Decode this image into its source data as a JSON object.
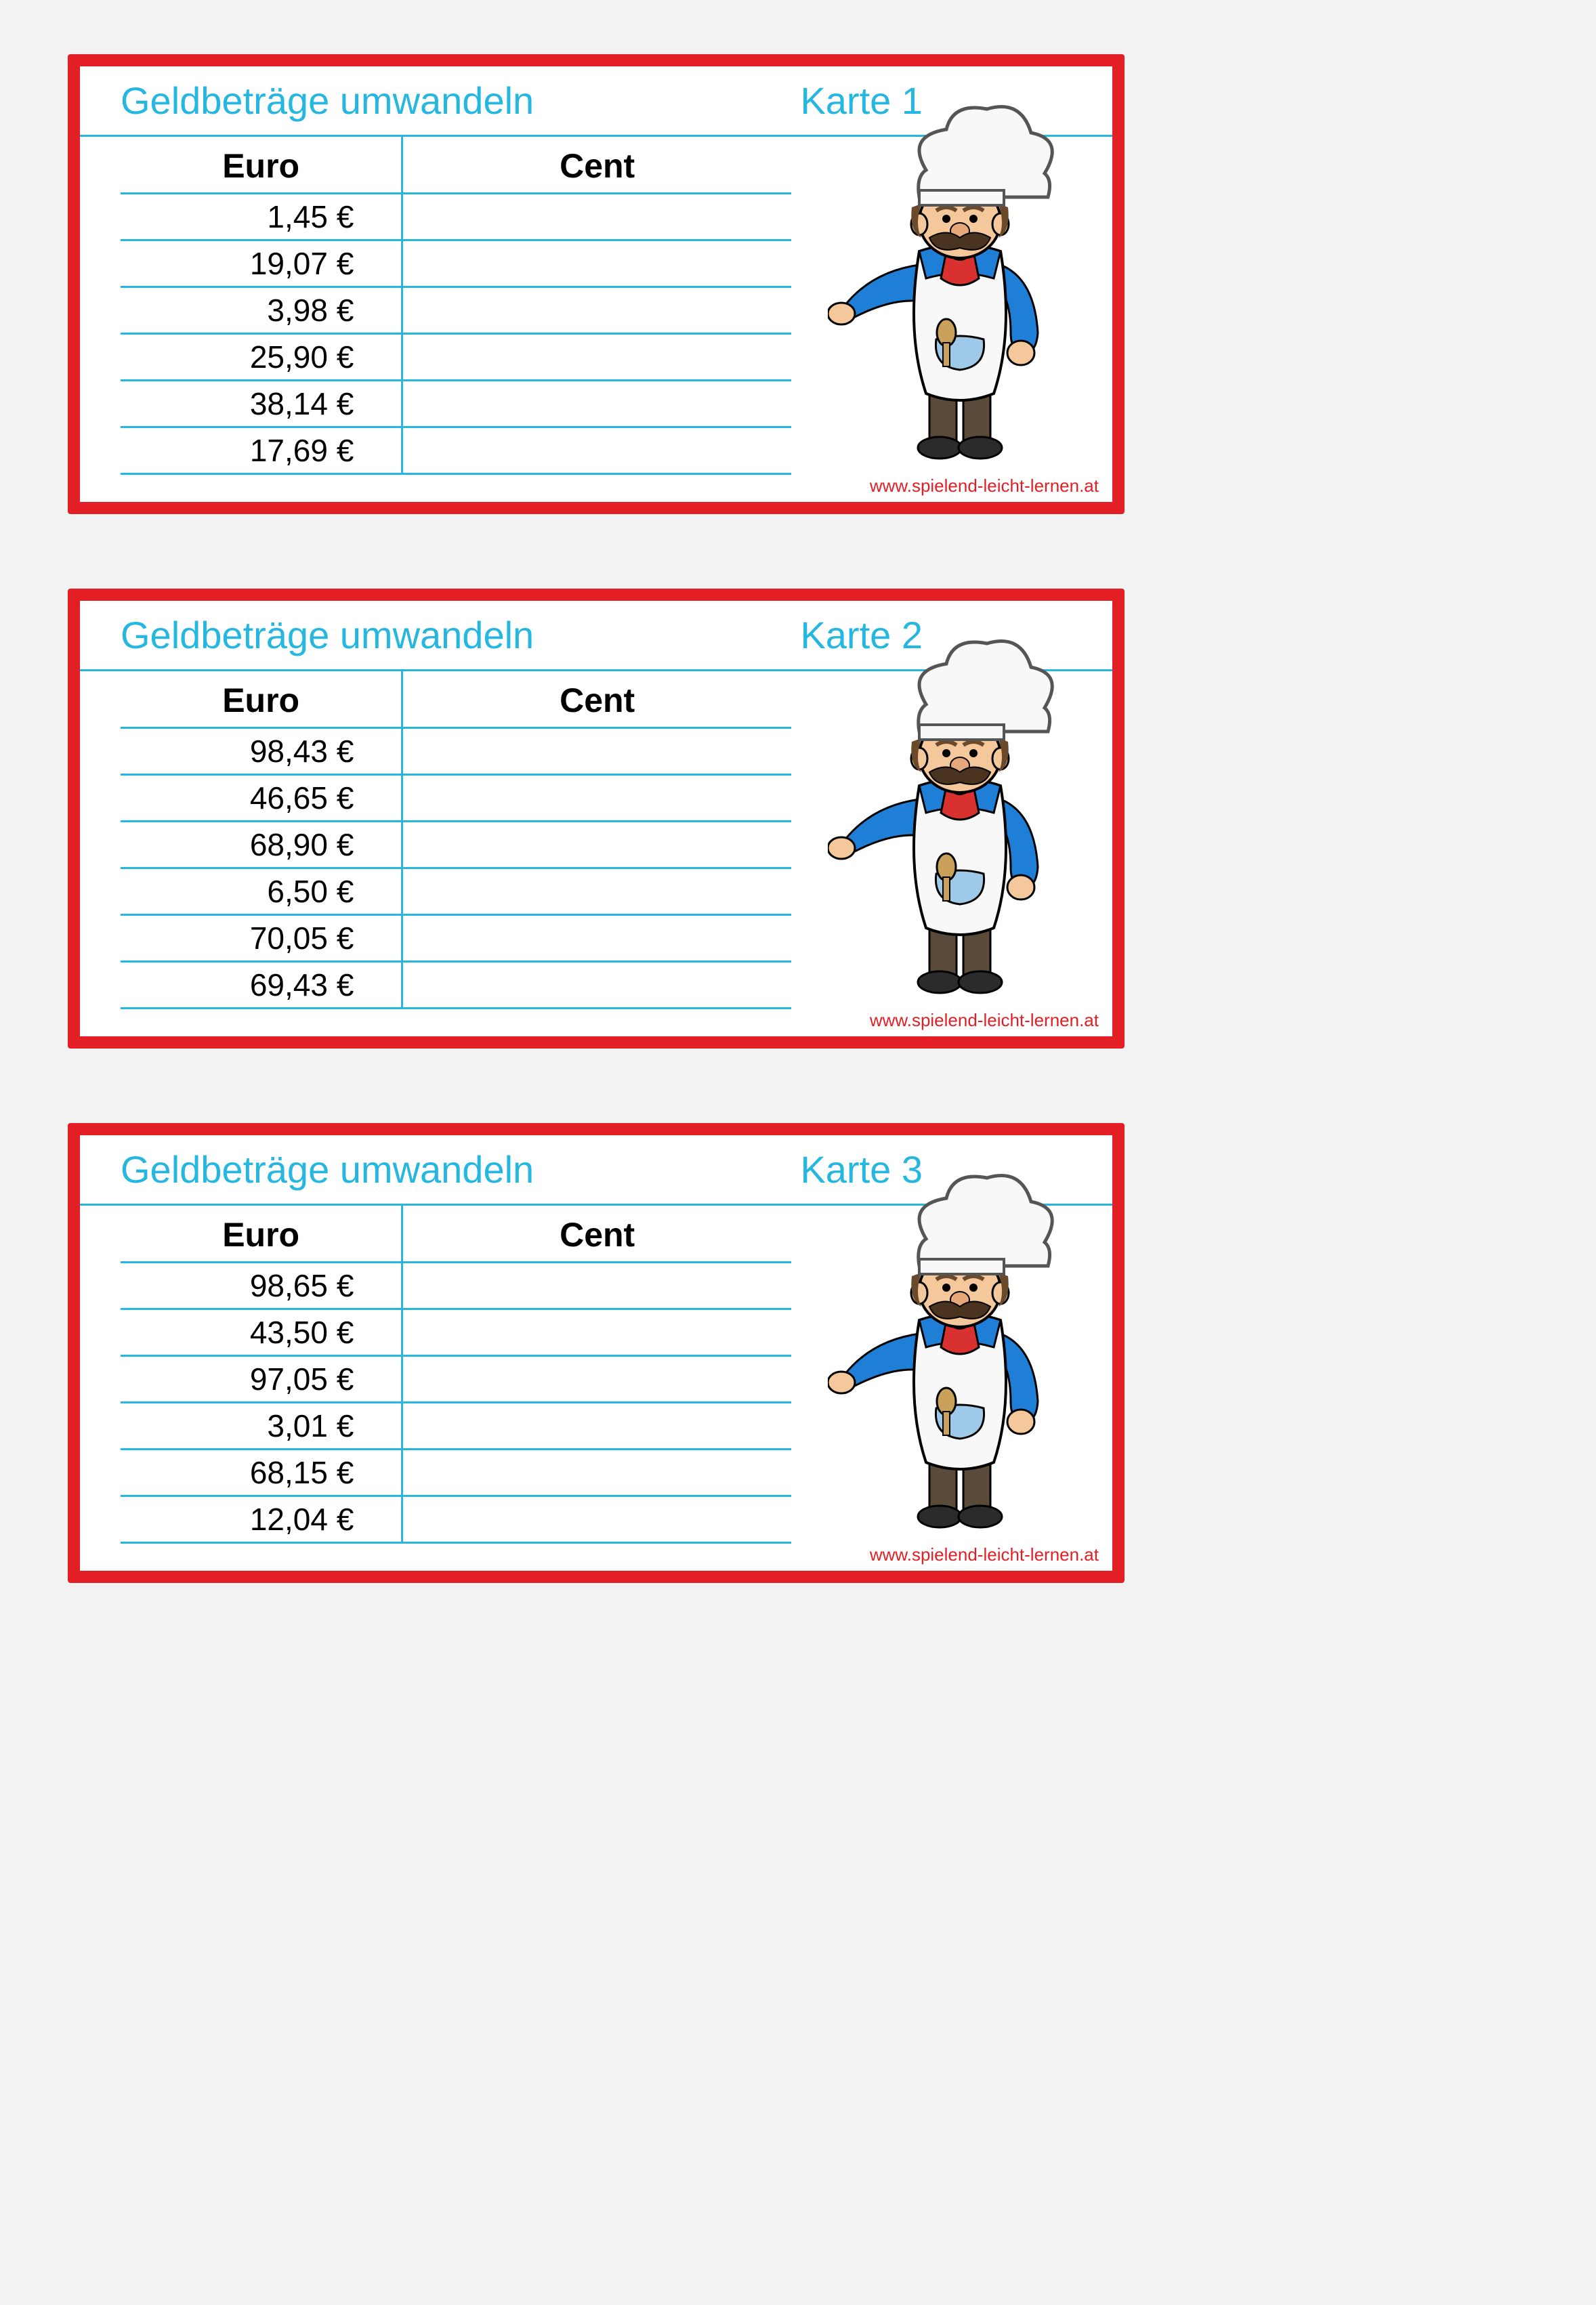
{
  "colors": {
    "page_bg": "#f2f2f2",
    "card_bg": "#ffffff",
    "border": "#e31e24",
    "accent": "#25b7e0",
    "text": "#000000",
    "url": "#e31e24"
  },
  "typography": {
    "header_fontsize": 56,
    "th_fontsize": 50,
    "td_fontsize": 46,
    "url_fontsize": 26
  },
  "common": {
    "title": "Geldbeträge umwandeln",
    "col_euro": "Euro",
    "col_cent": "Cent",
    "url": "www.spielend-leicht-lernen.at"
  },
  "cards": [
    {
      "karte": "Karte 1",
      "rows": [
        {
          "euro": "  1,45 €",
          "cent": ""
        },
        {
          "euro": "19,07 €",
          "cent": ""
        },
        {
          "euro": "  3,98 €",
          "cent": ""
        },
        {
          "euro": "25,90 €",
          "cent": ""
        },
        {
          "euro": "38,14 €",
          "cent": ""
        },
        {
          "euro": "17,69 €",
          "cent": ""
        }
      ]
    },
    {
      "karte": "Karte 2",
      "rows": [
        {
          "euro": "98,43 €",
          "cent": ""
        },
        {
          "euro": "46,65 €",
          "cent": ""
        },
        {
          "euro": "68,90 €",
          "cent": ""
        },
        {
          "euro": "  6,50 €",
          "cent": ""
        },
        {
          "euro": "70,05 €",
          "cent": ""
        },
        {
          "euro": "69,43 €",
          "cent": ""
        }
      ]
    },
    {
      "karte": "Karte 3",
      "rows": [
        {
          "euro": "98,65 €",
          "cent": ""
        },
        {
          "euro": "43,50 €",
          "cent": ""
        },
        {
          "euro": "97,05 €",
          "cent": ""
        },
        {
          "euro": "  3,01 €",
          "cent": ""
        },
        {
          "euro": "68,15 €",
          "cent": ""
        },
        {
          "euro": "12,04 €",
          "cent": ""
        }
      ]
    }
  ],
  "illustration": {
    "name": "chef-icon",
    "hat_color": "#f8f8f8",
    "hat_outline": "#555555",
    "face_color": "#f4c89a",
    "hair_color": "#6b4a2b",
    "moustache_color": "#4a3420",
    "nose_color": "#e6a87a",
    "shirt_color": "#1f7fd6",
    "apron_color": "#f8f8f8",
    "scarf_color": "#d93030",
    "pants_color": "#5a4a3a",
    "shoe_color": "#2b2b2b",
    "spoon_color": "#c9a15a",
    "pocket_color": "#9ec9e8"
  }
}
